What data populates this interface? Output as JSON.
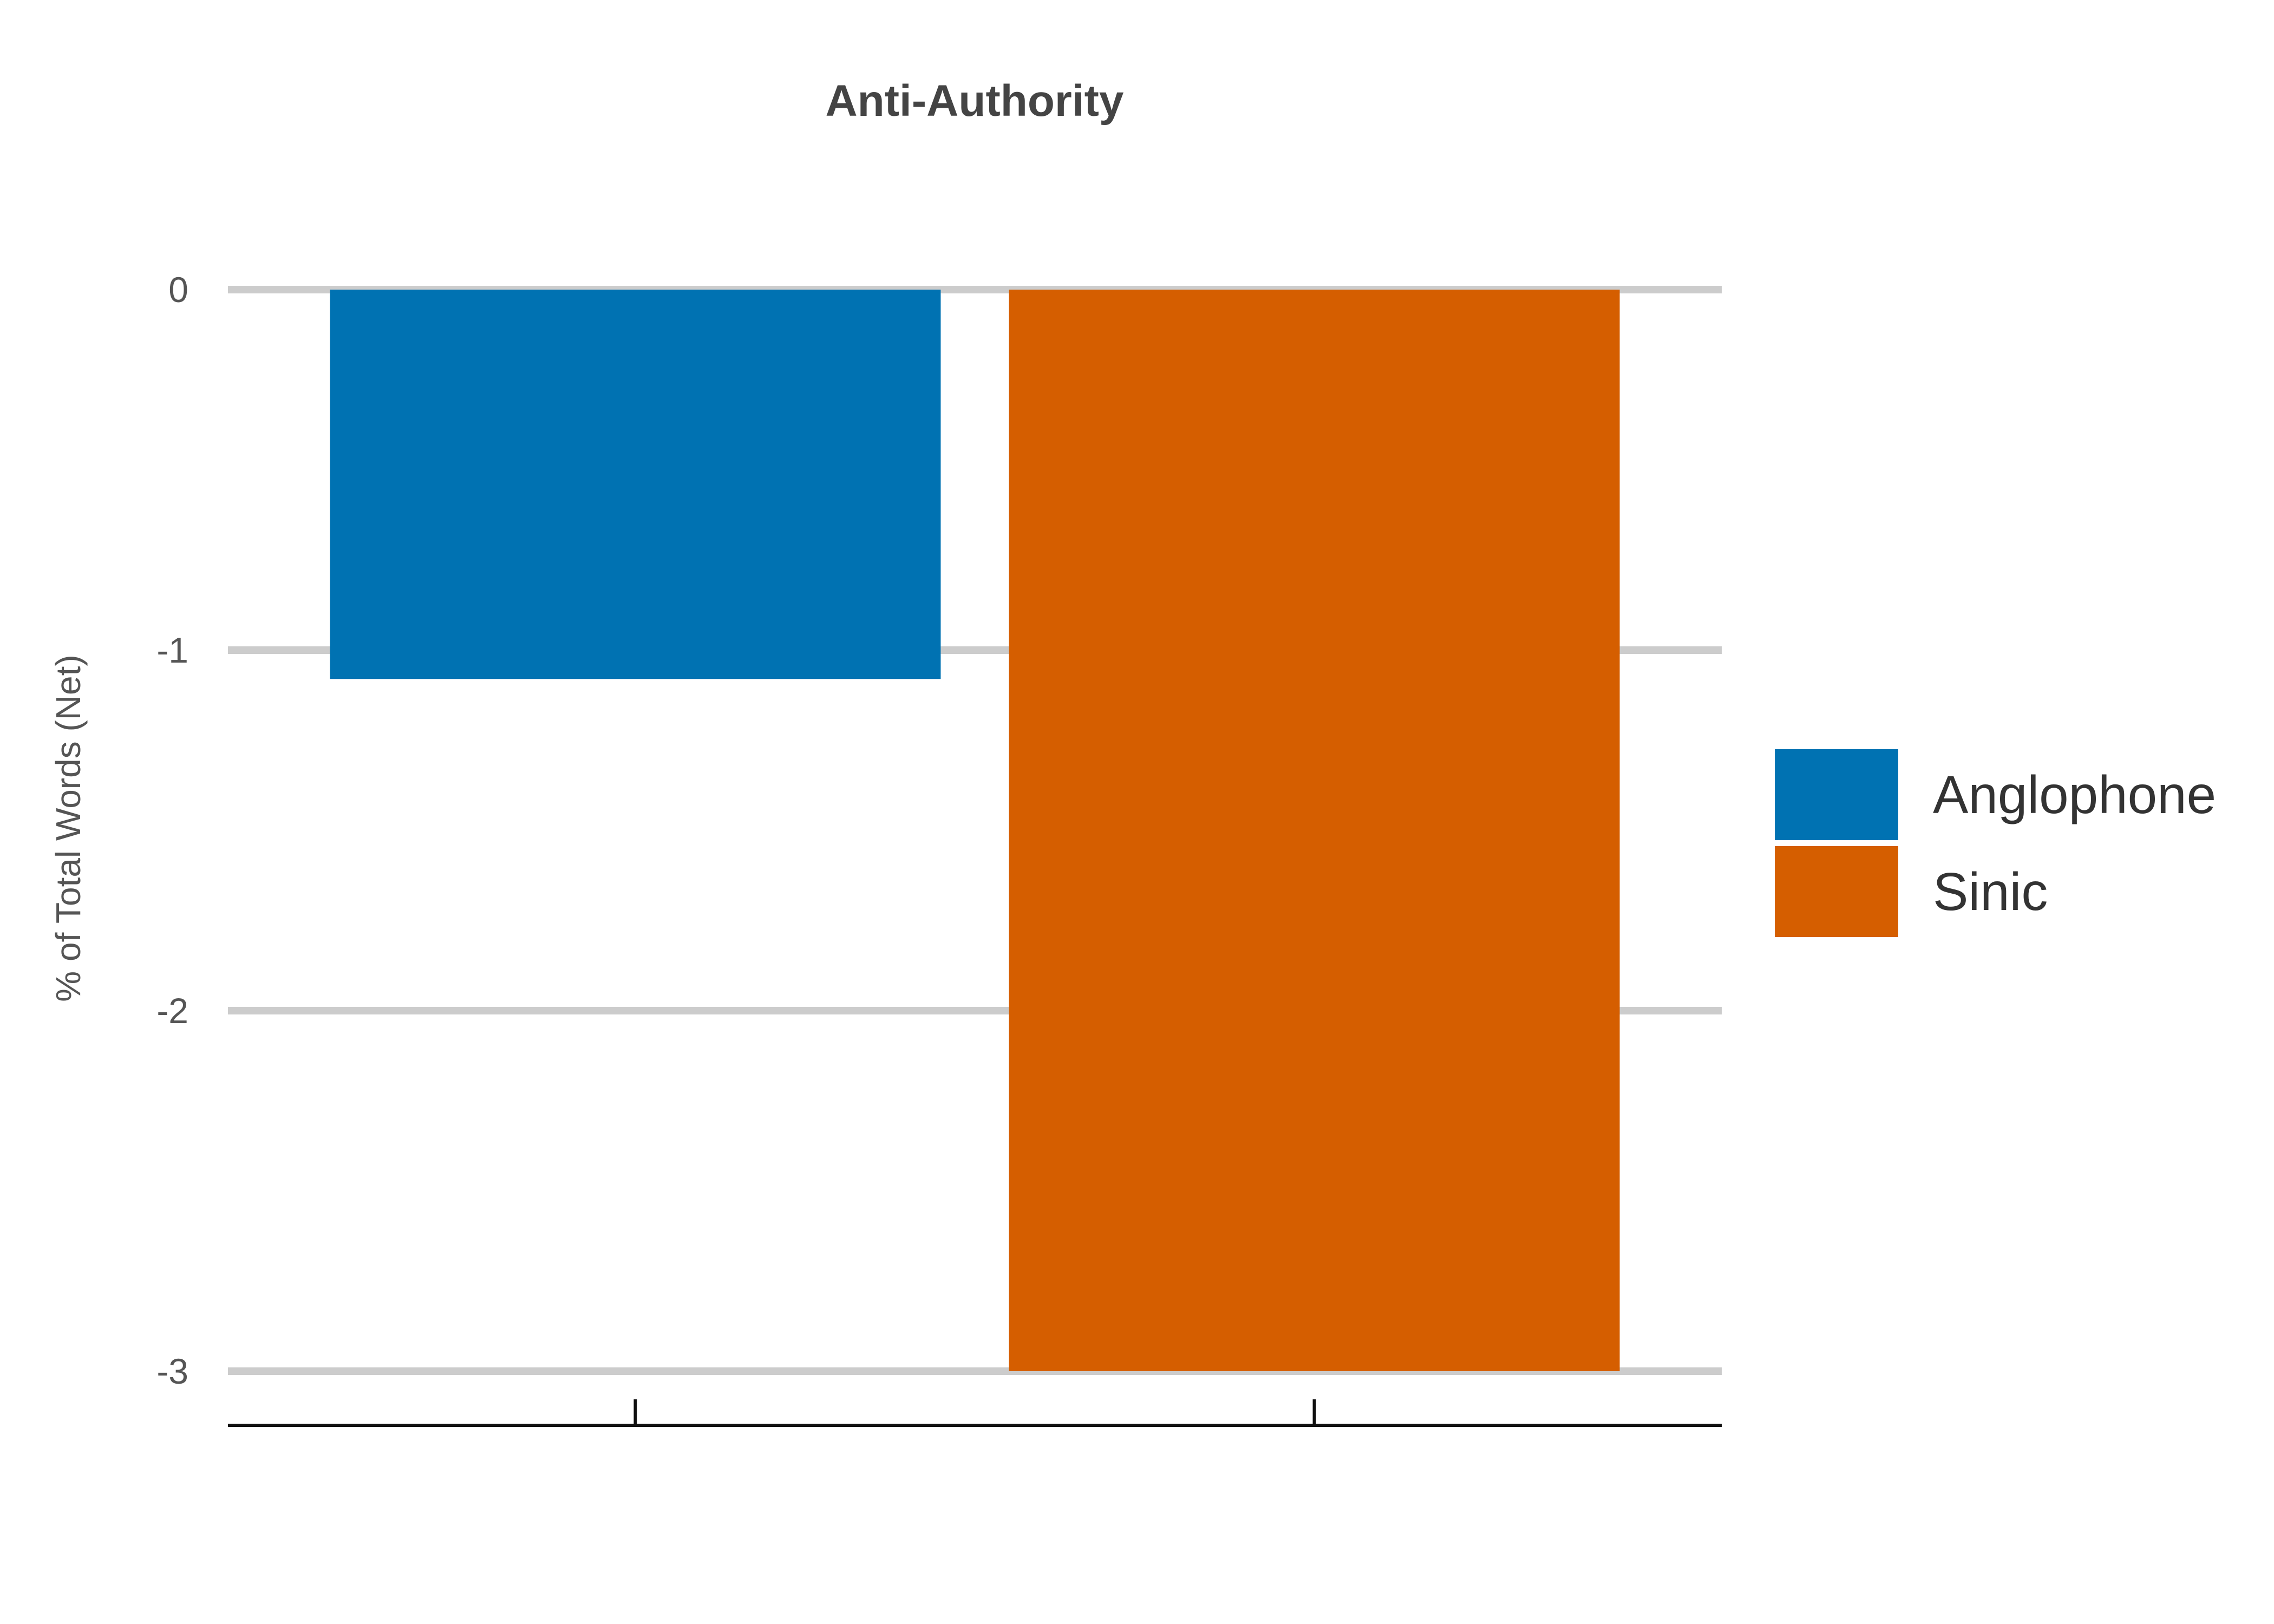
{
  "chart_data": {
    "type": "bar",
    "title": "Anti-Authority",
    "xlabel": "",
    "ylabel": "% of Total Words (Net)",
    "categories": [
      "Anglophone",
      "Sinic"
    ],
    "values": [
      -1.08,
      -3.0
    ],
    "colors": [
      "#0072b2",
      "#d55e00"
    ],
    "ylim": [
      -3,
      0
    ],
    "yticks": [
      0,
      -1,
      -2,
      -3
    ],
    "ytick_labels": [
      "0",
      "-1",
      "-2",
      "-3"
    ],
    "grid": true,
    "grid_color": "#cccccc",
    "legend": {
      "placement": "right",
      "entries": [
        {
          "label": "Anglophone",
          "color": "#0072b2"
        },
        {
          "label": "Sinic",
          "color": "#d55e00"
        }
      ]
    }
  }
}
